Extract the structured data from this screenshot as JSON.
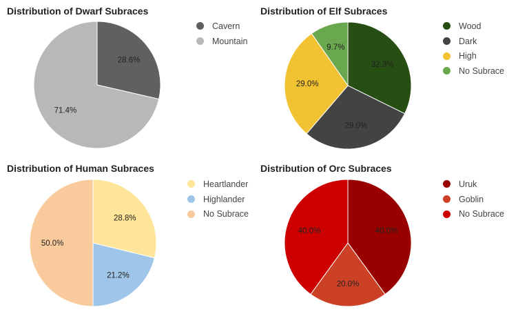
{
  "chart_data": [
    {
      "type": "pie",
      "title": "Distribution of Dwarf Subraces",
      "categories": [
        "Cavern",
        "Mountain"
      ],
      "values": [
        28.6,
        71.4
      ],
      "labels": [
        "28.6%",
        "71.4%"
      ],
      "colors": [
        "#606060",
        "#b8b8b8"
      ],
      "legend": "right"
    },
    {
      "type": "pie",
      "title": "Distribution of Elf Subraces",
      "categories": [
        "Wood",
        "Dark",
        "High",
        "No Subrace"
      ],
      "values": [
        32.3,
        29.0,
        29.0,
        9.7
      ],
      "labels": [
        "32.3%",
        "29.0%",
        "29.0%",
        "9.7%"
      ],
      "colors": [
        "#274e13",
        "#434343",
        "#f1c232",
        "#6aa84f"
      ],
      "legend": "right"
    },
    {
      "type": "pie",
      "title": "Distribution of Human Subraces",
      "categories": [
        "Heartlander",
        "Highlander",
        "No Subrace"
      ],
      "values": [
        28.8,
        21.2,
        50.0
      ],
      "labels": [
        "28.8%",
        "21.2%",
        "50.0%"
      ],
      "colors": [
        "#ffe599",
        "#9fc5e8",
        "#f9cb9c"
      ],
      "legend": "right"
    },
    {
      "type": "pie",
      "title": "Distribution of Orc Subraces",
      "categories": [
        "Uruk",
        "Goblin",
        "No Subrace"
      ],
      "values": [
        40.0,
        20.0,
        40.0
      ],
      "labels": [
        "40.0%",
        "20.0%",
        "40.0%"
      ],
      "colors": [
        "#990000",
        "#cc4125",
        "#cc0000"
      ],
      "legend": "right"
    }
  ]
}
